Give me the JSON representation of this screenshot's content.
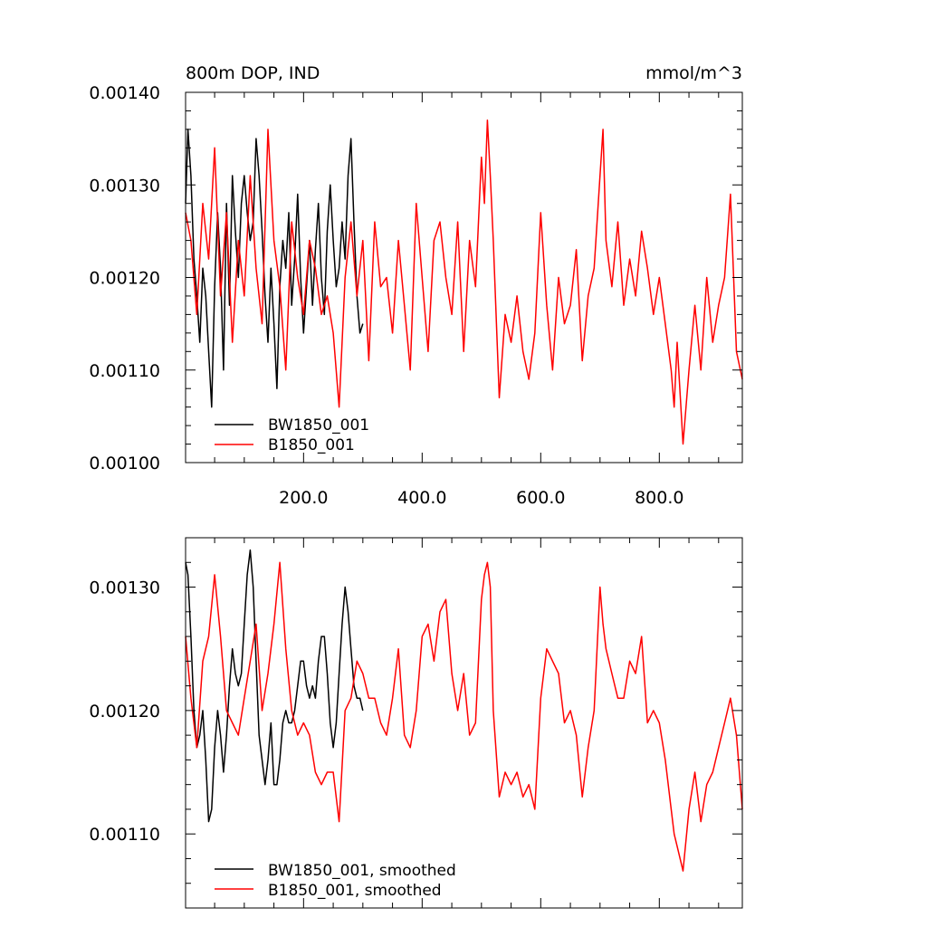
{
  "chart_data": [
    {
      "type": "line",
      "title": "800m DOP, IND",
      "units": "mmol/m^3",
      "xlim": [
        1,
        940
      ],
      "ylim": [
        0.001,
        0.0014
      ],
      "x_ticks": [
        "200.0",
        "400.0",
        "600.0",
        "800.0"
      ],
      "x_tick_values": [
        200,
        400,
        600,
        800
      ],
      "y_ticks": [
        "0.00100",
        "0.00110",
        "0.00120",
        "0.00130",
        "0.00140"
      ],
      "y_tick_values": [
        0.001,
        0.0011,
        0.0012,
        0.0013,
        0.0014
      ],
      "grid": false,
      "legend_position": "bottom-left",
      "series": [
        {
          "name": "BW1850_001",
          "color": "#000000",
          "x": [
            1,
            5,
            10,
            15,
            20,
            25,
            30,
            35,
            40,
            45,
            50,
            55,
            60,
            65,
            70,
            75,
            80,
            85,
            90,
            95,
            100,
            105,
            110,
            115,
            120,
            125,
            130,
            135,
            140,
            145,
            150,
            155,
            160,
            165,
            170,
            175,
            180,
            185,
            190,
            195,
            200,
            205,
            210,
            215,
            220,
            225,
            230,
            235,
            240,
            245,
            250,
            255,
            260,
            265,
            270,
            275,
            280,
            285,
            290,
            295,
            300
          ],
          "values": [
            0.00128,
            0.00136,
            0.00131,
            0.00122,
            0.00118,
            0.00113,
            0.00121,
            0.00118,
            0.00112,
            0.00106,
            0.00119,
            0.00127,
            0.00121,
            0.0011,
            0.00128,
            0.00117,
            0.00131,
            0.00125,
            0.0012,
            0.00128,
            0.00131,
            0.00127,
            0.00124,
            0.00126,
            0.00135,
            0.00131,
            0.00125,
            0.00118,
            0.00113,
            0.00121,
            0.00115,
            0.00108,
            0.00119,
            0.00124,
            0.00121,
            0.00127,
            0.00117,
            0.00122,
            0.00129,
            0.0012,
            0.00114,
            0.00119,
            0.00124,
            0.00117,
            0.00123,
            0.00128,
            0.0012,
            0.00116,
            0.00125,
            0.0013,
            0.00124,
            0.00119,
            0.00121,
            0.00126,
            0.00122,
            0.00131,
            0.00135,
            0.00126,
            0.00118,
            0.00114,
            0.00115
          ]
        },
        {
          "name": "B1850_001",
          "color": "#ff0000",
          "x": [
            1,
            10,
            20,
            30,
            40,
            50,
            60,
            70,
            80,
            90,
            100,
            110,
            120,
            130,
            140,
            150,
            160,
            170,
            180,
            190,
            200,
            210,
            220,
            230,
            240,
            250,
            260,
            270,
            280,
            290,
            300,
            310,
            320,
            330,
            340,
            350,
            360,
            370,
            380,
            390,
            400,
            410,
            420,
            430,
            440,
            450,
            460,
            470,
            480,
            490,
            500,
            505,
            510,
            515,
            520,
            530,
            540,
            550,
            560,
            570,
            580,
            590,
            600,
            610,
            620,
            630,
            640,
            650,
            660,
            670,
            680,
            690,
            700,
            705,
            710,
            720,
            730,
            740,
            750,
            760,
            770,
            780,
            790,
            800,
            810,
            820,
            825,
            830,
            840,
            850,
            860,
            870,
            880,
            890,
            900,
            910,
            920,
            930,
            940
          ],
          "values": [
            0.00127,
            0.00124,
            0.00116,
            0.00128,
            0.00122,
            0.00134,
            0.00118,
            0.00127,
            0.00113,
            0.00124,
            0.00118,
            0.00131,
            0.00121,
            0.00115,
            0.00136,
            0.00124,
            0.00119,
            0.0011,
            0.00126,
            0.0012,
            0.00116,
            0.00124,
            0.00121,
            0.00116,
            0.00118,
            0.00114,
            0.00106,
            0.0012,
            0.00126,
            0.00118,
            0.00124,
            0.00111,
            0.00126,
            0.00119,
            0.0012,
            0.00114,
            0.00124,
            0.00117,
            0.0011,
            0.00128,
            0.0012,
            0.00112,
            0.00124,
            0.00126,
            0.0012,
            0.00116,
            0.00126,
            0.00112,
            0.00124,
            0.00119,
            0.00133,
            0.00128,
            0.00137,
            0.00131,
            0.00124,
            0.00107,
            0.00116,
            0.00113,
            0.00118,
            0.00112,
            0.00109,
            0.00114,
            0.00127,
            0.00117,
            0.0011,
            0.0012,
            0.00115,
            0.00117,
            0.00123,
            0.00111,
            0.00118,
            0.00121,
            0.00131,
            0.00136,
            0.00124,
            0.00119,
            0.00126,
            0.00117,
            0.00122,
            0.00118,
            0.00125,
            0.00121,
            0.00116,
            0.0012,
            0.00115,
            0.0011,
            0.00106,
            0.00113,
            0.00102,
            0.0011,
            0.00117,
            0.0011,
            0.0012,
            0.00113,
            0.00117,
            0.0012,
            0.00129,
            0.00112,
            0.00109
          ]
        }
      ]
    },
    {
      "type": "line",
      "xlim": [
        1,
        940
      ],
      "ylim": [
        0.00104,
        0.00134
      ],
      "y_ticks": [
        "0.00110",
        "0.00120",
        "0.00130"
      ],
      "y_tick_values": [
        0.0011,
        0.0012,
        0.0013
      ],
      "grid": false,
      "legend_position": "bottom-left",
      "series": [
        {
          "name": "BW1850_001, smoothed",
          "color": "#000000",
          "x": [
            1,
            5,
            10,
            15,
            20,
            25,
            30,
            35,
            40,
            45,
            50,
            55,
            60,
            65,
            70,
            75,
            80,
            85,
            90,
            95,
            100,
            105,
            110,
            115,
            120,
            125,
            130,
            135,
            140,
            145,
            150,
            155,
            160,
            165,
            170,
            175,
            180,
            185,
            190,
            195,
            200,
            205,
            210,
            215,
            220,
            225,
            230,
            235,
            240,
            245,
            250,
            255,
            260,
            265,
            270,
            275,
            280,
            285,
            290,
            295,
            300
          ],
          "values": [
            0.00132,
            0.00131,
            0.00126,
            0.0012,
            0.00117,
            0.00118,
            0.0012,
            0.00116,
            0.00111,
            0.00112,
            0.00117,
            0.0012,
            0.00118,
            0.00115,
            0.00118,
            0.00122,
            0.00125,
            0.00123,
            0.00122,
            0.00123,
            0.00127,
            0.00131,
            0.00133,
            0.0013,
            0.00124,
            0.00118,
            0.00116,
            0.00114,
            0.00116,
            0.00119,
            0.00114,
            0.00114,
            0.00116,
            0.00119,
            0.0012,
            0.00119,
            0.00119,
            0.0012,
            0.00122,
            0.00124,
            0.00124,
            0.00122,
            0.00121,
            0.00122,
            0.00121,
            0.00124,
            0.00126,
            0.00126,
            0.00123,
            0.00119,
            0.00117,
            0.00119,
            0.00123,
            0.00127,
            0.0013,
            0.00128,
            0.00125,
            0.00122,
            0.00121,
            0.00121,
            0.0012
          ]
        },
        {
          "name": "B1850_001, smoothed",
          "color": "#ff0000",
          "x": [
            1,
            10,
            20,
            30,
            40,
            50,
            60,
            70,
            80,
            90,
            100,
            110,
            120,
            130,
            140,
            150,
            160,
            170,
            180,
            190,
            200,
            210,
            220,
            230,
            240,
            250,
            260,
            270,
            280,
            290,
            300,
            310,
            320,
            330,
            340,
            350,
            360,
            370,
            380,
            390,
            400,
            410,
            420,
            430,
            440,
            450,
            460,
            470,
            480,
            490,
            500,
            505,
            510,
            515,
            520,
            530,
            540,
            550,
            560,
            570,
            580,
            590,
            600,
            610,
            620,
            630,
            640,
            650,
            660,
            670,
            680,
            690,
            700,
            705,
            710,
            720,
            730,
            740,
            750,
            760,
            770,
            780,
            790,
            800,
            810,
            820,
            825,
            830,
            840,
            850,
            860,
            870,
            880,
            890,
            900,
            910,
            920,
            930,
            940
          ],
          "values": [
            0.00126,
            0.00121,
            0.00117,
            0.00124,
            0.00126,
            0.00131,
            0.00126,
            0.0012,
            0.00119,
            0.00118,
            0.00121,
            0.00124,
            0.00127,
            0.0012,
            0.00123,
            0.00127,
            0.00132,
            0.00125,
            0.0012,
            0.00118,
            0.00119,
            0.00118,
            0.00115,
            0.00114,
            0.00115,
            0.00115,
            0.00111,
            0.0012,
            0.00121,
            0.00124,
            0.00123,
            0.00121,
            0.00121,
            0.00119,
            0.00118,
            0.00121,
            0.00125,
            0.00118,
            0.00117,
            0.0012,
            0.00126,
            0.00127,
            0.00124,
            0.00128,
            0.00129,
            0.00123,
            0.0012,
            0.00123,
            0.00118,
            0.00119,
            0.00129,
            0.00131,
            0.00132,
            0.0013,
            0.0012,
            0.00113,
            0.00115,
            0.00114,
            0.00115,
            0.00113,
            0.00114,
            0.00112,
            0.00121,
            0.00125,
            0.00124,
            0.00123,
            0.00119,
            0.0012,
            0.00118,
            0.00113,
            0.00117,
            0.0012,
            0.0013,
            0.00127,
            0.00125,
            0.00123,
            0.00121,
            0.00121,
            0.00124,
            0.00123,
            0.00126,
            0.00119,
            0.0012,
            0.00119,
            0.00116,
            0.00112,
            0.0011,
            0.00109,
            0.00107,
            0.00112,
            0.00115,
            0.00111,
            0.00114,
            0.00115,
            0.00117,
            0.00119,
            0.00121,
            0.00118,
            0.00112
          ]
        }
      ]
    }
  ]
}
